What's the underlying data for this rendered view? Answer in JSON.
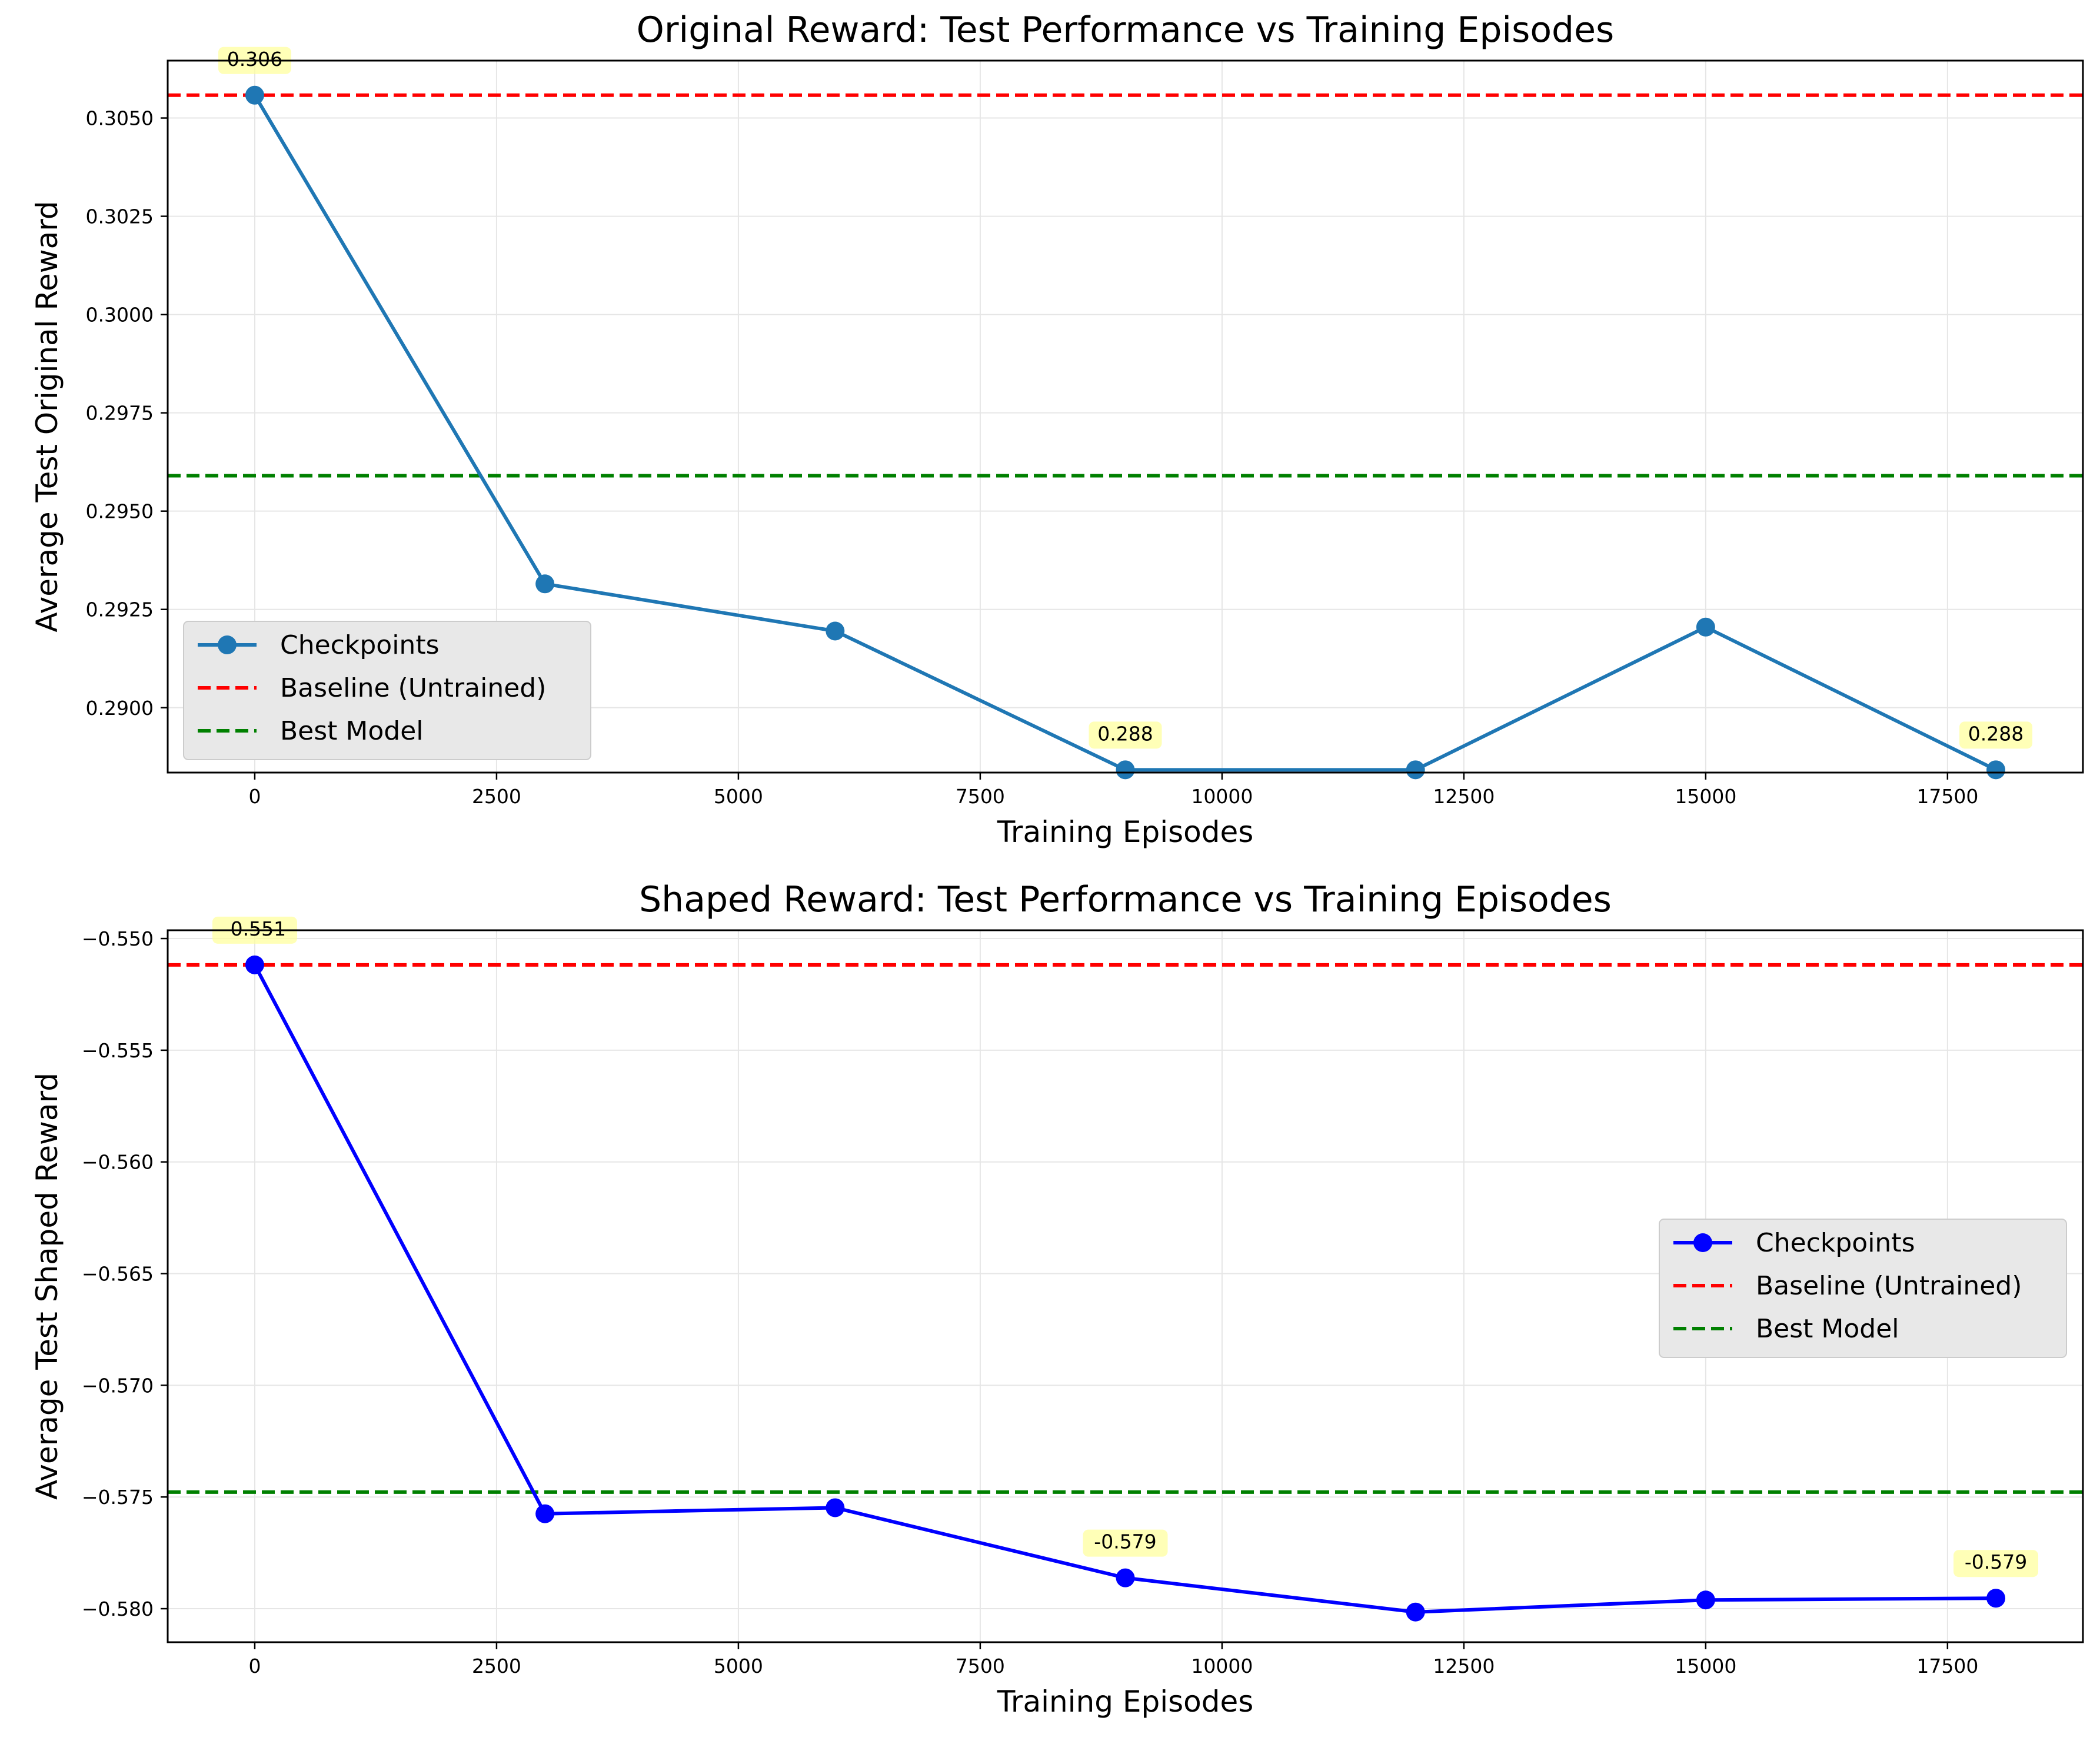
{
  "chart_data": [
    {
      "type": "line",
      "title": "Original Reward: Test Performance vs Training Episodes",
      "xlabel": "Training Episodes",
      "ylabel": "Average Test Original Reward",
      "xlim": [
        -900,
        18900
      ],
      "ylim": [
        0.28835,
        0.30646
      ],
      "xticks": [
        0,
        2500,
        5000,
        7500,
        10000,
        12500,
        15000,
        17500
      ],
      "yticks": [
        0.29,
        0.2925,
        0.295,
        0.2975,
        0.3,
        0.3025,
        0.305
      ],
      "ytick_labels": [
        "0.2900",
        "0.2925",
        "0.2950",
        "0.2975",
        "0.3000",
        "0.3025",
        "0.3050"
      ],
      "grid": true,
      "legend_position": "lower-left",
      "series": [
        {
          "name": "Checkpoints",
          "style": "line-with-circle-markers",
          "color": "#1f77b4",
          "x": [
            0,
            3000,
            6000,
            9000,
            12000,
            15000,
            18000
          ],
          "y": [
            0.30558,
            0.29315,
            0.29195,
            0.28842,
            0.28842,
            0.29205,
            0.28842
          ]
        }
      ],
      "hlines": [
        {
          "name": "Baseline (Untrained)",
          "y": 0.30558,
          "color": "#ff0000",
          "style": "dashed"
        },
        {
          "name": "Best Model",
          "y": 0.2959,
          "color": "#008000",
          "style": "dashed"
        }
      ],
      "annotations": [
        {
          "text": "0.306",
          "x": 0,
          "y": 0.30558
        },
        {
          "text": "0.288",
          "x": 9000,
          "y": 0.28842
        },
        {
          "text": "0.288",
          "x": 18000,
          "y": 0.28842
        }
      ]
    },
    {
      "type": "line",
      "title": "Shaped Reward: Test Performance vs Training Episodes",
      "xlabel": "Training Episodes",
      "ylabel": "Average Test Shaped Reward",
      "xlim": [
        -900,
        18900
      ],
      "ylim": [
        -0.5815,
        -0.54963
      ],
      "xticks": [
        0,
        2500,
        5000,
        7500,
        10000,
        12500,
        15000,
        17500
      ],
      "yticks": [
        -0.58,
        -0.575,
        -0.57,
        -0.565,
        -0.56,
        -0.555,
        -0.55
      ],
      "ytick_labels": [
        "−0.580",
        "−0.575",
        "−0.570",
        "−0.565",
        "−0.560",
        "−0.555",
        "−0.550"
      ],
      "grid": true,
      "legend_position": "center-right",
      "series": [
        {
          "name": "Checkpoints",
          "style": "line-with-circle-markers",
          "color": "#0000ff",
          "x": [
            0,
            3000,
            6000,
            9000,
            12000,
            15000,
            18000
          ],
          "y": [
            -0.55118,
            -0.57575,
            -0.57548,
            -0.57862,
            -0.58015,
            -0.57961,
            -0.57953
          ]
        }
      ],
      "hlines": [
        {
          "name": "Baseline (Untrained)",
          "y": -0.55118,
          "color": "#ff0000",
          "style": "dashed"
        },
        {
          "name": "Best Model",
          "y": -0.57478,
          "color": "#008000",
          "style": "dashed"
        }
      ],
      "annotations": [
        {
          "text": "-0.551",
          "x": 0,
          "y": -0.55118
        },
        {
          "text": "-0.579",
          "x": 9000,
          "y": -0.57862
        },
        {
          "text": "-0.579",
          "x": 18000,
          "y": -0.57953
        }
      ]
    }
  ]
}
